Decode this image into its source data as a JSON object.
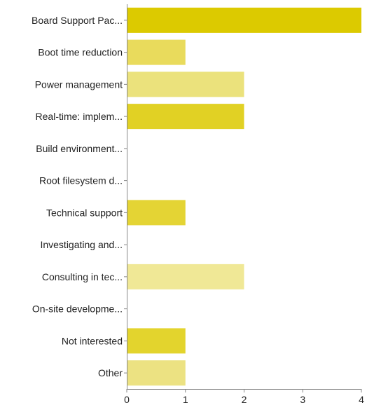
{
  "chart_data": {
    "type": "bar",
    "orientation": "horizontal",
    "categories": [
      "Board Support Pac...",
      "Boot time reduction",
      "Power management",
      "Real-time: implem...",
      "Build environment...",
      "Root filesystem d...",
      "Technical support",
      "Investigating and...",
      "Consulting in tec...",
      "On-site developme...",
      "Not interested",
      "Other"
    ],
    "values": [
      4,
      1,
      2,
      2,
      0,
      0,
      1,
      0,
      2,
      0,
      1,
      1
    ],
    "bar_colors": [
      "#dcca00",
      "#e9db5c",
      "#ebe27c",
      "#e1d124",
      "#e6d84c",
      "#e8dc60",
      "#e4d434",
      "#e8dc68",
      "#f0e896",
      "#eadf70",
      "#e3d42d",
      "#ece282"
    ],
    "xlim": [
      0,
      4
    ],
    "xticks": [
      "0",
      "1",
      "2",
      "3",
      "4"
    ],
    "grid": false,
    "title": "",
    "xlabel": "",
    "ylabel": ""
  }
}
